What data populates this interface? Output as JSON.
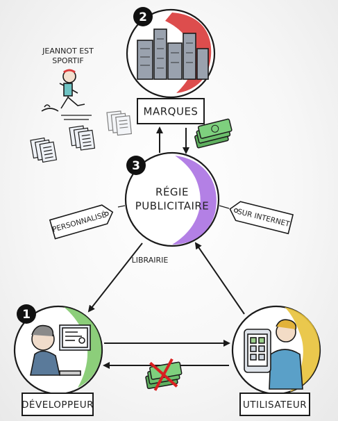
{
  "nodes": {
    "marques": {
      "badge": "2",
      "label": "MARQUES"
    },
    "regie": {
      "badge": "3",
      "line1": "RÉGIE",
      "line2": "PUBLICITAIRE"
    },
    "developpeur": {
      "badge": "1",
      "label": "DÉVELOPPEUR"
    },
    "utilisateur": {
      "label": "UTILISATEUR"
    }
  },
  "tags": {
    "personnalise": "PERSONNALISÉ",
    "sur_internet": "SUR INTERNET"
  },
  "edge_labels": {
    "librairie": "LIBRAIRIE"
  },
  "notes": {
    "jeannot_line1": "JEANNOT EST",
    "jeannot_line2": "SPORTIF"
  },
  "colors": {
    "ink": "#1a1a1a",
    "brand_red": "#d93a3a",
    "regie_purple": "#a66ae0",
    "dev_green": "#7fc96b",
    "user_yellow": "#e8c23a",
    "money_green": "#4f9e4f",
    "cross_red": "#d92020"
  }
}
